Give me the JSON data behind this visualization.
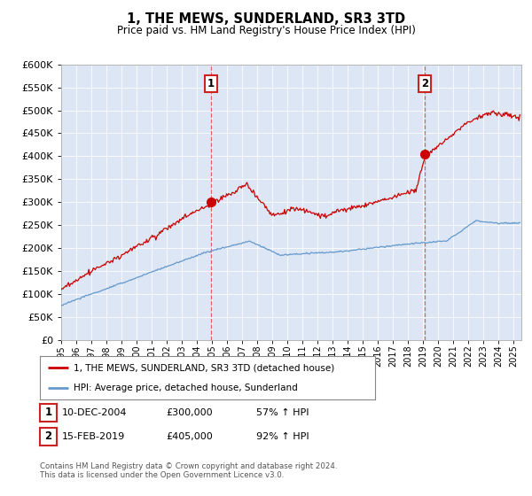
{
  "title": "1, THE MEWS, SUNDERLAND, SR3 3TD",
  "subtitle": "Price paid vs. HM Land Registry's House Price Index (HPI)",
  "legend_line1": "1, THE MEWS, SUNDERLAND, SR3 3TD (detached house)",
  "legend_line2": "HPI: Average price, detached house, Sunderland",
  "annotation1_date": "10-DEC-2004",
  "annotation1_price": "£300,000",
  "annotation1_hpi": "57% ↑ HPI",
  "annotation2_date": "15-FEB-2019",
  "annotation2_price": "£405,000",
  "annotation2_hpi": "92% ↑ HPI",
  "footer": "Contains HM Land Registry data © Crown copyright and database right 2024.\nThis data is licensed under the Open Government Licence v3.0.",
  "sale1_x": 2004.94,
  "sale1_y": 300000,
  "sale2_x": 2019.12,
  "sale2_y": 405000,
  "ylim": [
    0,
    600000
  ],
  "xlim": [
    1995.0,
    2025.5
  ],
  "yticks": [
    0,
    50000,
    100000,
    150000,
    200000,
    250000,
    300000,
    350000,
    400000,
    450000,
    500000,
    550000,
    600000
  ],
  "background_color": "#dce6f5",
  "red_line_color": "#cc0000",
  "blue_line_color": "#6699cc",
  "sale_marker_color": "#cc0000",
  "vline_color": "#ee4444",
  "box_edge_color": "#cc2222"
}
